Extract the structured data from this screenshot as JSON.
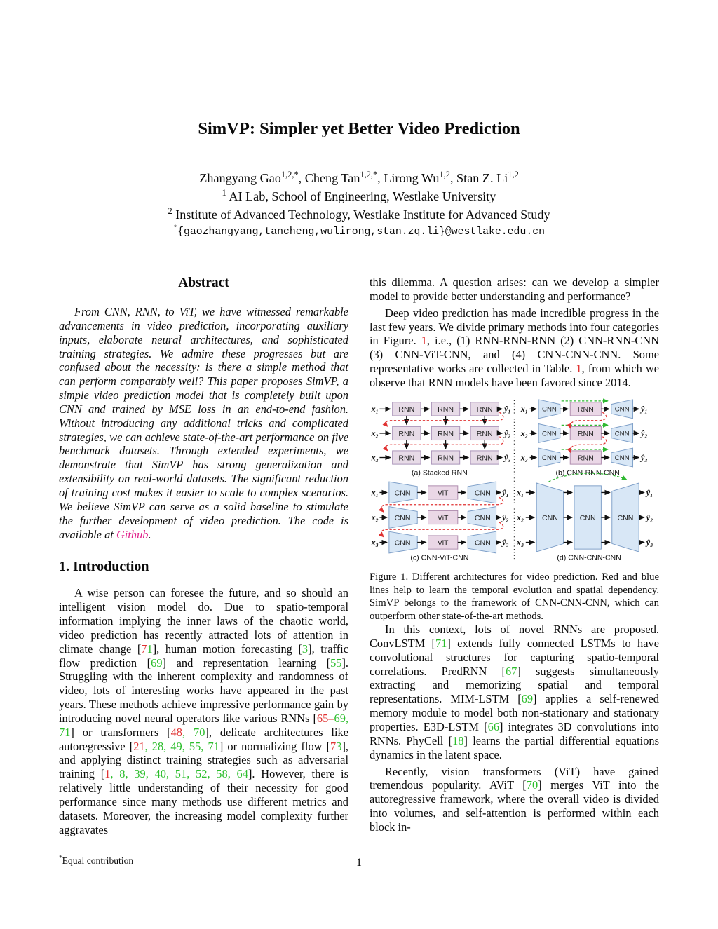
{
  "page": {
    "number": "1"
  },
  "colors": {
    "citation_green": "#2bbd2b",
    "link_red": "#e03232",
    "github_pink": "#e0218a",
    "figure_red_dash": "#e03232",
    "figure_green_dash": "#2fb832",
    "cnn_blue": "#d8e7f6",
    "rnn_lavender": "#e7dbe7"
  },
  "header": {
    "title": "SimVP: Simpler yet Better Video Prediction",
    "authors": [
      {
        "t": "Zhangyang Gao"
      },
      {
        "t": "1,2,*",
        "sup": true
      },
      {
        "t": ", Cheng Tan"
      },
      {
        "t": "1,2,*",
        "sup": true
      },
      {
        "t": ", Lirong Wu"
      },
      {
        "t": "1,2",
        "sup": true
      },
      {
        "t": ", Stan Z. Li"
      },
      {
        "t": "1,2",
        "sup": true
      }
    ],
    "affil1": [
      {
        "t": "1",
        "sup": true
      },
      {
        "t": " AI Lab, School of Engineering, Westlake University"
      }
    ],
    "affil2": [
      {
        "t": "2",
        "sup": true
      },
      {
        "t": " Institute of Advanced Technology, Westlake Institute for Advanced Study"
      }
    ],
    "email": [
      {
        "t": "*",
        "sup": true
      },
      {
        "t": "{gaozhangyang,tancheng,wulirong,stan.zq.li}@westlake.edu.cn"
      }
    ]
  },
  "abstract": {
    "heading": "Abstract",
    "body": [
      {
        "t": "From CNN, RNN, to ViT, we have witnessed remarkable advancements in video prediction, incorporating auxiliary inputs, elaborate neural architectures, and sophisticated training strategies. We admire these progresses but are confused about the necessity: is there a simple method that can perform comparably well? This paper proposes SimVP, a simple video prediction model that is completely built upon CNN and trained by MSE loss in an end-to-end fashion. Without introducing any additional tricks and complicated strategies, we can achieve state-of-the-art performance on five benchmark datasets. Through extended experiments, we demonstrate that SimVP has strong generalization and extensibility on real-world datasets. The significant reduction of training cost makes it easier to scale to complex scenarios. We believe SimVP can serve as a solid baseline to stimulate the further development of video prediction. The code is available at "
      },
      {
        "t": "Github",
        "c": "#e0218a",
        "n": "github-link"
      },
      {
        "t": "."
      }
    ]
  },
  "intro": {
    "heading": "1. Introduction",
    "p1": [
      {
        "t": "A wise person can foresee the future, and so should an intelligent vision model do.  Due to spatio-temporal information implying the inner laws of the chaotic world, video prediction has recently attracted lots of attention in climate change ["
      },
      {
        "t": "7",
        "c": "#e03232",
        "n": "citation"
      },
      {
        "t": "1",
        "c": "#2bbd2b",
        "n": "citation"
      },
      {
        "t": "], human motion forecasting ["
      },
      {
        "t": "3",
        "c": "#2bbd2b",
        "n": "citation"
      },
      {
        "t": "], traffic flow prediction ["
      },
      {
        "t": "69",
        "c": "#2bbd2b",
        "n": "citation"
      },
      {
        "t": "] and representation learning ["
      },
      {
        "t": "55",
        "c": "#2bbd2b",
        "n": "citation"
      },
      {
        "t": "].  Struggling with the inherent complexity and randomness of video, lots of interesting works have appeared in the past years. These methods achieve impressive performance gain by introducing novel neural operators like various RNNs ["
      },
      {
        "t": "65–",
        "c": "#e03232",
        "n": "citation"
      },
      {
        "t": "69, 71",
        "c": "#2bbd2b",
        "n": "citation"
      },
      {
        "t": "] or transformers ["
      },
      {
        "t": "48",
        "c": "#e03232",
        "n": "citation"
      },
      {
        "t": ", 70",
        "c": "#2bbd2b",
        "n": "citation"
      },
      {
        "t": "], delicate architectures like autoregressive ["
      },
      {
        "t": "21",
        "c": "#e03232",
        "n": "citation"
      },
      {
        "t": ", 28, 49, 55, 71",
        "c": "#2bbd2b",
        "n": "citation"
      },
      {
        "t": "] or normalizing flow ["
      },
      {
        "t": "7",
        "c": "#e03232",
        "n": "citation"
      },
      {
        "t": "3",
        "c": "#2bbd2b",
        "n": "citation"
      },
      {
        "t": "], and applying distinct training strategies such as adversarial training ["
      },
      {
        "t": "1",
        "c": "#e03232",
        "n": "citation"
      },
      {
        "t": ", 8, 39, 40, 51, 52, 58, 64",
        "c": "#2bbd2b",
        "n": "citation"
      },
      {
        "t": "]. However, there is relatively little understanding of their necessity for good performance since many methods use different metrics and datasets.  Moreover, the increasing model complexity further aggravates"
      }
    ]
  },
  "right": {
    "p0": [
      {
        "t": "this dilemma.  A question arises: can we develop a simpler model to provide better understanding and performance?"
      }
    ],
    "p1": [
      {
        "t": "Deep video prediction has made incredible progress in the last few years.  We divide primary methods into four categories in Figure. "
      },
      {
        "t": "1",
        "c": "#e03232",
        "n": "figure-ref"
      },
      {
        "t": ", i.e., (1) RNN-RNN-RNN (2) CNN-RNN-CNN (3) CNN-ViT-CNN, and (4) CNN-CNN-CNN. Some representative works are collected in Table. "
      },
      {
        "t": "1",
        "c": "#e03232",
        "n": "table-ref"
      },
      {
        "t": ", from which we observe that RNN models have been favored since 2014."
      }
    ],
    "p2": [
      {
        "t": "In this context, lots of novel RNNs are proposed.  ConvLSTM ["
      },
      {
        "t": "71",
        "c": "#2bbd2b",
        "n": "citation"
      },
      {
        "t": "] extends fully connected LSTMs to have convolutional structures for capturing spatio-temporal correlations.  PredRNN ["
      },
      {
        "t": "67",
        "c": "#2bbd2b",
        "n": "citation"
      },
      {
        "t": "] suggests simultaneously extracting and memorizing spatial and temporal representations. MIM-LSTM ["
      },
      {
        "t": "69",
        "c": "#2bbd2b",
        "n": "citation"
      },
      {
        "t": "] applies a self-renewed memory module to model both non-stationary and stationary properties.  E3D-LSTM ["
      },
      {
        "t": "66",
        "c": "#2bbd2b",
        "n": "citation"
      },
      {
        "t": "] integrates 3D convolutions into RNNs.  PhyCell ["
      },
      {
        "t": "18",
        "c": "#2bbd2b",
        "n": "citation"
      },
      {
        "t": "] learns the partial differential equations dynamics in the latent space."
      }
    ],
    "p3": [
      {
        "t": "Recently, vision transformers (ViT) have gained tremendous popularity. AViT ["
      },
      {
        "t": "70",
        "c": "#2bbd2b",
        "n": "citation"
      },
      {
        "t": "] merges ViT into the autoregressive framework, where the overall video is divided into volumes, and self-attention is performed within each block in-"
      }
    ]
  },
  "figure1": {
    "caption": "Figure 1.  Different architectures for video prediction.  Red and blue lines help to learn the temporal evolution and spatial dependency.  SimVP belongs to the framework of CNN-CNN-CNN, which can outperform other state-of-the-art methods.",
    "box_labels": {
      "rnn": "RNN",
      "cnn": "CNN",
      "vit": "ViT"
    },
    "inputs": [
      "x₁",
      "x₂",
      "x₃"
    ],
    "outputs": [
      "ŷ₁",
      "ŷ₂",
      "ŷ₃"
    ],
    "subcaptions": [
      "(a) Stacked RNN",
      "(b) CNN-RNN-CNN",
      "(c) CNN-ViT-CNN",
      "(d) CNN-CNN-CNN"
    ]
  },
  "footnote": [
    {
      "t": "*",
      "sup": true
    },
    {
      "t": "Equal contribution"
    }
  ]
}
